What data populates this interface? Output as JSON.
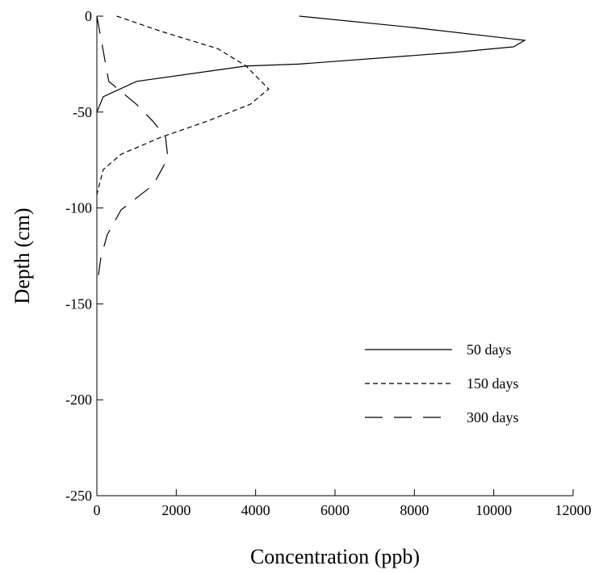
{
  "chart_data": {
    "type": "line",
    "x_label": "Concentration (ppb)",
    "y_label": "Depth (cm)",
    "xlim": [
      0,
      12000
    ],
    "ylim": [
      -250,
      0
    ],
    "xticks": [
      0,
      2000,
      4000,
      6000,
      8000,
      10000,
      12000
    ],
    "yticks": [
      0,
      -50,
      -100,
      -150,
      -200,
      -250
    ],
    "series": [
      {
        "name": "50 days",
        "color": "#000000",
        "dash": "none",
        "x": [
          5100,
          8000,
          10780,
          10500,
          8950,
          5085,
          3760,
          1000,
          160,
          0
        ],
        "values": [
          0,
          -6,
          -12.6,
          -16,
          -19,
          -25,
          -26,
          -34,
          -42,
          -50
        ]
      },
      {
        "name": "150 days",
        "color": "#000000",
        "dash": "6,4",
        "x": [
          500,
          1630,
          3050,
          3760,
          4330,
          3860,
          2750,
          1630,
          610,
          160,
          0
        ],
        "values": [
          0,
          -8,
          -17,
          -26,
          -38,
          -46,
          -55,
          -63,
          -72,
          -80,
          -93
        ]
      },
      {
        "name": "300 days",
        "color": "#000000",
        "dash": "22,14",
        "x": [
          0,
          300,
          1000,
          1420,
          1730,
          1790,
          1420,
          610,
          260,
          100,
          0
        ],
        "values": [
          0,
          -34,
          -46,
          -55,
          -63,
          -74,
          -88,
          -101,
          -114,
          -126,
          -141
        ]
      }
    ]
  }
}
